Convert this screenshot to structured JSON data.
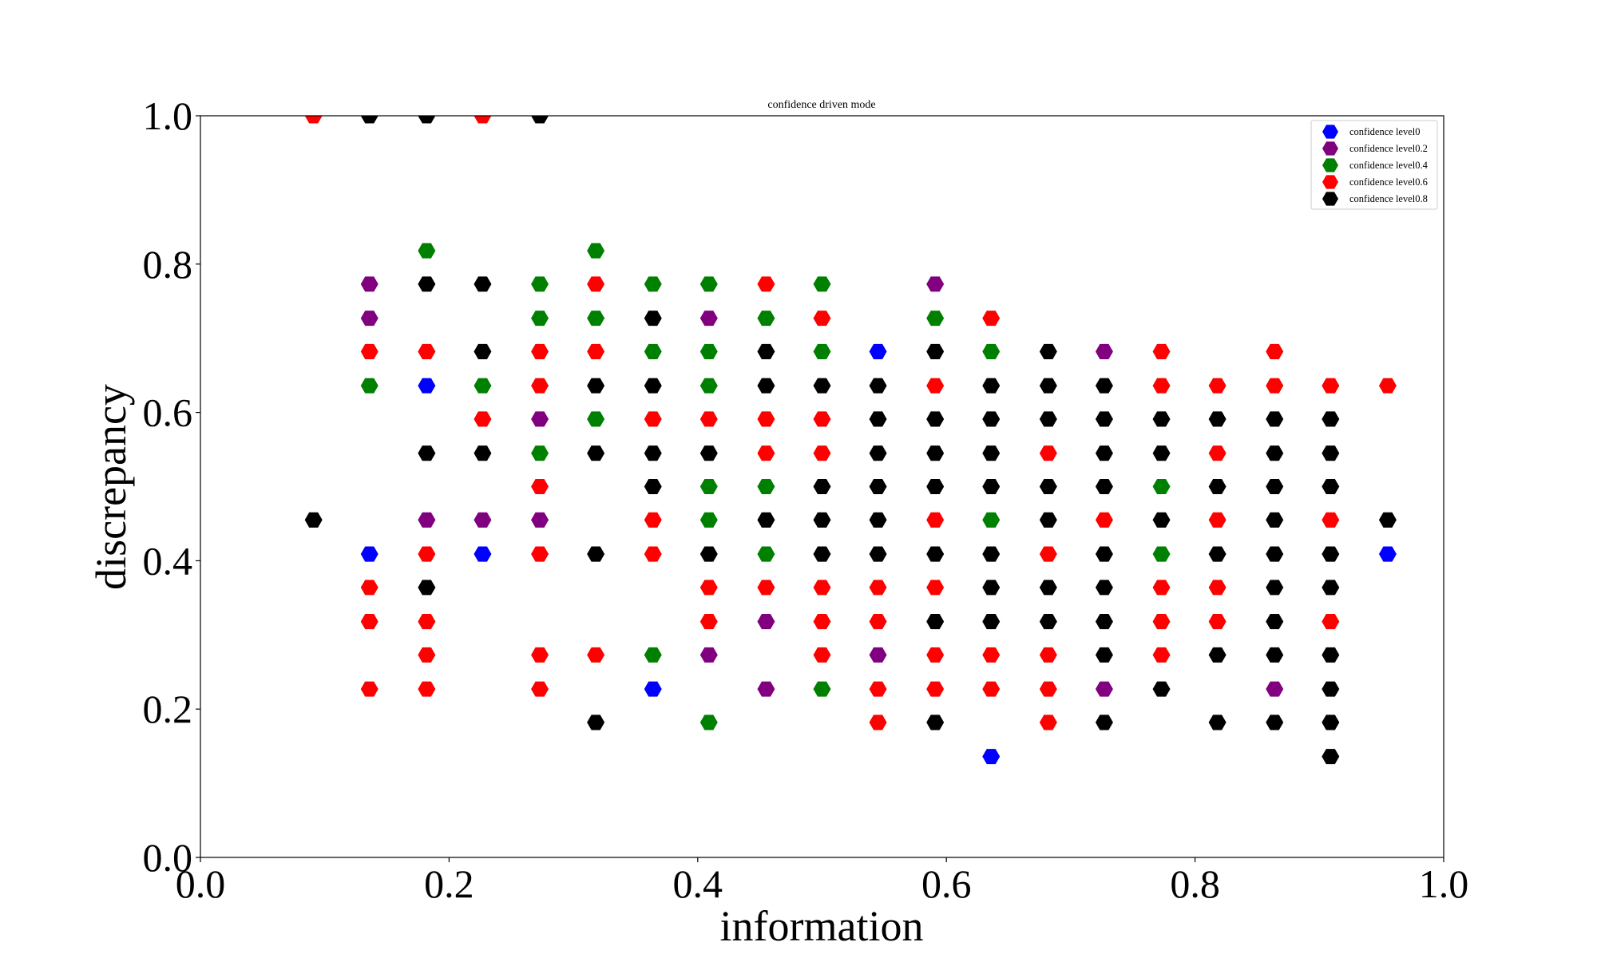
{
  "chart_data": {
    "type": "scatter",
    "title": "confidence driven mode",
    "xlabel": "information",
    "ylabel": "discrepancy",
    "xlim": [
      0,
      1
    ],
    "ylim": [
      0,
      1
    ],
    "xticks": [
      0,
      0.2,
      0.4,
      0.6,
      0.8,
      1.0
    ],
    "yticks": [
      0,
      0.2,
      0.4,
      0.6,
      0.8,
      1.0
    ],
    "xtick_labels": [
      "0.0",
      "0.2",
      "0.4",
      "0.6",
      "0.8",
      "1.0"
    ],
    "ytick_labels": [
      "0.0",
      "0.2",
      "0.4",
      "0.6",
      "0.8",
      "1.0"
    ],
    "marker": "hexagon",
    "grid": false,
    "legend_position": "top-right",
    "series": [
      {
        "name": "confidence level0",
        "color": "#0000ff",
        "points": [
          [
            0.545,
            0.682
          ],
          [
            0.182,
            0.636
          ],
          [
            0.136,
            0.409
          ],
          [
            0.227,
            0.409
          ],
          [
            0.955,
            0.409
          ],
          [
            0.364,
            0.227
          ],
          [
            0.636,
            0.136
          ]
        ]
      },
      {
        "name": "confidence level0.2",
        "color": "#800080",
        "points": [
          [
            0.136,
            0.773
          ],
          [
            0.591,
            0.773
          ],
          [
            0.136,
            0.727
          ],
          [
            0.409,
            0.727
          ],
          [
            0.727,
            0.682
          ],
          [
            0.273,
            0.591
          ],
          [
            0.182,
            0.455
          ],
          [
            0.227,
            0.455
          ],
          [
            0.273,
            0.455
          ],
          [
            0.455,
            0.318
          ],
          [
            0.409,
            0.273
          ],
          [
            0.545,
            0.273
          ],
          [
            0.455,
            0.227
          ],
          [
            0.727,
            0.227
          ],
          [
            0.864,
            0.227
          ]
        ]
      },
      {
        "name": "confidence level0.4",
        "color": "#008000",
        "points": [
          [
            0.182,
            0.818
          ],
          [
            0.318,
            0.818
          ],
          [
            0.273,
            0.773
          ],
          [
            0.364,
            0.773
          ],
          [
            0.409,
            0.773
          ],
          [
            0.5,
            0.773
          ],
          [
            0.273,
            0.727
          ],
          [
            0.318,
            0.727
          ],
          [
            0.455,
            0.727
          ],
          [
            0.591,
            0.727
          ],
          [
            0.364,
            0.682
          ],
          [
            0.409,
            0.682
          ],
          [
            0.5,
            0.682
          ],
          [
            0.636,
            0.682
          ],
          [
            0.136,
            0.636
          ],
          [
            0.227,
            0.636
          ],
          [
            0.409,
            0.636
          ],
          [
            0.318,
            0.591
          ],
          [
            0.273,
            0.545
          ],
          [
            0.409,
            0.5
          ],
          [
            0.455,
            0.5
          ],
          [
            0.773,
            0.5
          ],
          [
            0.409,
            0.455
          ],
          [
            0.636,
            0.455
          ],
          [
            0.455,
            0.409
          ],
          [
            0.773,
            0.409
          ],
          [
            0.364,
            0.273
          ],
          [
            0.5,
            0.227
          ],
          [
            0.409,
            0.182
          ]
        ]
      },
      {
        "name": "confidence level0.6",
        "color": "#ff0000",
        "points": [
          [
            0.091,
            1.0
          ],
          [
            0.227,
            1.0
          ],
          [
            0.318,
            0.773
          ],
          [
            0.455,
            0.773
          ],
          [
            0.5,
            0.727
          ],
          [
            0.636,
            0.727
          ],
          [
            0.136,
            0.682
          ],
          [
            0.182,
            0.682
          ],
          [
            0.273,
            0.682
          ],
          [
            0.318,
            0.682
          ],
          [
            0.773,
            0.682
          ],
          [
            0.864,
            0.682
          ],
          [
            0.273,
            0.636
          ],
          [
            0.591,
            0.636
          ],
          [
            0.773,
            0.636
          ],
          [
            0.818,
            0.636
          ],
          [
            0.864,
            0.636
          ],
          [
            0.909,
            0.636
          ],
          [
            0.955,
            0.636
          ],
          [
            0.227,
            0.591
          ],
          [
            0.364,
            0.591
          ],
          [
            0.409,
            0.591
          ],
          [
            0.455,
            0.591
          ],
          [
            0.5,
            0.591
          ],
          [
            0.455,
            0.545
          ],
          [
            0.5,
            0.545
          ],
          [
            0.682,
            0.545
          ],
          [
            0.818,
            0.545
          ],
          [
            0.273,
            0.5
          ],
          [
            0.364,
            0.455
          ],
          [
            0.591,
            0.455
          ],
          [
            0.727,
            0.455
          ],
          [
            0.818,
            0.455
          ],
          [
            0.909,
            0.455
          ],
          [
            0.182,
            0.409
          ],
          [
            0.273,
            0.409
          ],
          [
            0.364,
            0.409
          ],
          [
            0.682,
            0.409
          ],
          [
            0.136,
            0.364
          ],
          [
            0.409,
            0.364
          ],
          [
            0.455,
            0.364
          ],
          [
            0.5,
            0.364
          ],
          [
            0.545,
            0.364
          ],
          [
            0.591,
            0.364
          ],
          [
            0.773,
            0.364
          ],
          [
            0.818,
            0.364
          ],
          [
            0.136,
            0.318
          ],
          [
            0.182,
            0.318
          ],
          [
            0.409,
            0.318
          ],
          [
            0.5,
            0.318
          ],
          [
            0.545,
            0.318
          ],
          [
            0.773,
            0.318
          ],
          [
            0.818,
            0.318
          ],
          [
            0.909,
            0.318
          ],
          [
            0.182,
            0.273
          ],
          [
            0.273,
            0.273
          ],
          [
            0.318,
            0.273
          ],
          [
            0.5,
            0.273
          ],
          [
            0.591,
            0.273
          ],
          [
            0.636,
            0.273
          ],
          [
            0.682,
            0.273
          ],
          [
            0.773,
            0.273
          ],
          [
            0.136,
            0.227
          ],
          [
            0.182,
            0.227
          ],
          [
            0.273,
            0.227
          ],
          [
            0.545,
            0.227
          ],
          [
            0.591,
            0.227
          ],
          [
            0.636,
            0.227
          ],
          [
            0.682,
            0.227
          ],
          [
            0.545,
            0.182
          ],
          [
            0.682,
            0.182
          ]
        ]
      },
      {
        "name": "confidence level0.8",
        "color": "#000000",
        "points": [
          [
            0.136,
            1.0
          ],
          [
            0.182,
            1.0
          ],
          [
            0.273,
            1.0
          ],
          [
            0.182,
            0.773
          ],
          [
            0.227,
            0.773
          ],
          [
            0.364,
            0.727
          ],
          [
            0.227,
            0.682
          ],
          [
            0.455,
            0.682
          ],
          [
            0.591,
            0.682
          ],
          [
            0.682,
            0.682
          ],
          [
            0.318,
            0.636
          ],
          [
            0.364,
            0.636
          ],
          [
            0.455,
            0.636
          ],
          [
            0.5,
            0.636
          ],
          [
            0.545,
            0.636
          ],
          [
            0.636,
            0.636
          ],
          [
            0.682,
            0.636
          ],
          [
            0.727,
            0.636
          ],
          [
            0.545,
            0.591
          ],
          [
            0.591,
            0.591
          ],
          [
            0.636,
            0.591
          ],
          [
            0.682,
            0.591
          ],
          [
            0.727,
            0.591
          ],
          [
            0.773,
            0.591
          ],
          [
            0.818,
            0.591
          ],
          [
            0.864,
            0.591
          ],
          [
            0.909,
            0.591
          ],
          [
            0.182,
            0.545
          ],
          [
            0.227,
            0.545
          ],
          [
            0.318,
            0.545
          ],
          [
            0.364,
            0.545
          ],
          [
            0.409,
            0.545
          ],
          [
            0.545,
            0.545
          ],
          [
            0.591,
            0.545
          ],
          [
            0.636,
            0.545
          ],
          [
            0.727,
            0.545
          ],
          [
            0.773,
            0.545
          ],
          [
            0.864,
            0.545
          ],
          [
            0.909,
            0.545
          ],
          [
            0.364,
            0.5
          ],
          [
            0.5,
            0.5
          ],
          [
            0.545,
            0.5
          ],
          [
            0.591,
            0.5
          ],
          [
            0.636,
            0.5
          ],
          [
            0.682,
            0.5
          ],
          [
            0.727,
            0.5
          ],
          [
            0.818,
            0.5
          ],
          [
            0.864,
            0.5
          ],
          [
            0.909,
            0.5
          ],
          [
            0.091,
            0.455
          ],
          [
            0.455,
            0.455
          ],
          [
            0.5,
            0.455
          ],
          [
            0.545,
            0.455
          ],
          [
            0.682,
            0.455
          ],
          [
            0.773,
            0.455
          ],
          [
            0.864,
            0.455
          ],
          [
            0.955,
            0.455
          ],
          [
            0.318,
            0.409
          ],
          [
            0.409,
            0.409
          ],
          [
            0.5,
            0.409
          ],
          [
            0.545,
            0.409
          ],
          [
            0.591,
            0.409
          ],
          [
            0.636,
            0.409
          ],
          [
            0.727,
            0.409
          ],
          [
            0.818,
            0.409
          ],
          [
            0.864,
            0.409
          ],
          [
            0.909,
            0.409
          ],
          [
            0.182,
            0.364
          ],
          [
            0.636,
            0.364
          ],
          [
            0.682,
            0.364
          ],
          [
            0.727,
            0.364
          ],
          [
            0.864,
            0.364
          ],
          [
            0.909,
            0.364
          ],
          [
            0.591,
            0.318
          ],
          [
            0.636,
            0.318
          ],
          [
            0.682,
            0.318
          ],
          [
            0.727,
            0.318
          ],
          [
            0.864,
            0.318
          ],
          [
            0.727,
            0.273
          ],
          [
            0.818,
            0.273
          ],
          [
            0.864,
            0.273
          ],
          [
            0.909,
            0.273
          ],
          [
            0.773,
            0.227
          ],
          [
            0.909,
            0.227
          ],
          [
            0.318,
            0.182
          ],
          [
            0.591,
            0.182
          ],
          [
            0.727,
            0.182
          ],
          [
            0.818,
            0.182
          ],
          [
            0.864,
            0.182
          ],
          [
            0.909,
            0.182
          ],
          [
            0.909,
            0.136
          ]
        ]
      }
    ]
  }
}
